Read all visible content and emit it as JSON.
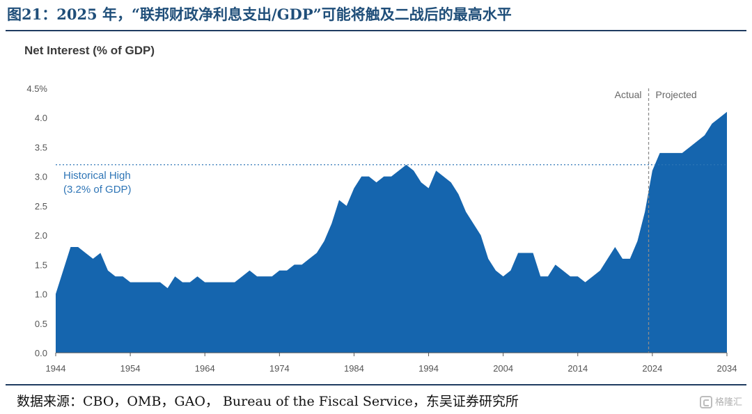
{
  "header": {
    "figure_title": "图21：2025 年，“联邦财政净利息支出/GDP”可能将触及二战后的最高水平"
  },
  "footer": {
    "source": "数据来源：CBO，OMB，GAO， Bureau of the Fiscal Service，东吴证券研究所",
    "watermark": "格隆汇"
  },
  "chart_data": {
    "type": "area",
    "title": "Net Interest (% of GDP)",
    "xlabel": "",
    "ylabel": "",
    "x_ticks": [
      "1944",
      "1954",
      "1964",
      "1974",
      "1984",
      "1994",
      "2004",
      "2014",
      "2024",
      "2034"
    ],
    "y_ticks": [
      "0.0",
      "0.5",
      "1.0",
      "1.5",
      "2.0",
      "2.5",
      "3.0",
      "3.5",
      "4.0",
      "4.5%"
    ],
    "xlim": [
      1944,
      2034
    ],
    "ylim": [
      0,
      4.5
    ],
    "grid": false,
    "color": "#1565ae",
    "reference_line": {
      "y": 3.2,
      "label_line1": "Historical High",
      "label_line2": "(3.2% of GDP)",
      "color": "#2e75b6"
    },
    "divider": {
      "x": 2023.5,
      "left_label": "Actual",
      "right_label": "Projected"
    },
    "series": [
      {
        "x": [
          1944,
          1945,
          1946,
          1947,
          1948,
          1949,
          1950,
          1951,
          1952,
          1953,
          1954,
          1955,
          1956,
          1957,
          1958,
          1959,
          1960,
          1961,
          1962,
          1963,
          1964,
          1965,
          1966,
          1967,
          1968,
          1969,
          1970,
          1971,
          1972,
          1973,
          1974,
          1975,
          1976,
          1977,
          1978,
          1979,
          1980,
          1981,
          1982,
          1983,
          1984,
          1985,
          1986,
          1987,
          1988,
          1989,
          1990,
          1991,
          1992,
          1993,
          1994,
          1995,
          1996,
          1997,
          1998,
          1999,
          2000,
          2001,
          2002,
          2003,
          2004,
          2005,
          2006,
          2007,
          2008,
          2009,
          2010,
          2011,
          2012,
          2013,
          2014,
          2015,
          2016,
          2017,
          2018,
          2019,
          2020,
          2021,
          2022,
          2023,
          2024,
          2025,
          2026,
          2027,
          2028,
          2029,
          2030,
          2031,
          2032,
          2033,
          2034
        ],
        "values": [
          1.0,
          1.4,
          1.8,
          1.8,
          1.7,
          1.6,
          1.7,
          1.4,
          1.3,
          1.3,
          1.2,
          1.2,
          1.2,
          1.2,
          1.2,
          1.1,
          1.3,
          1.2,
          1.2,
          1.3,
          1.2,
          1.2,
          1.2,
          1.2,
          1.2,
          1.3,
          1.4,
          1.3,
          1.3,
          1.3,
          1.4,
          1.4,
          1.5,
          1.5,
          1.6,
          1.7,
          1.9,
          2.2,
          2.6,
          2.5,
          2.8,
          3.0,
          3.0,
          2.9,
          3.0,
          3.0,
          3.1,
          3.2,
          3.1,
          2.9,
          2.8,
          3.1,
          3.0,
          2.9,
          2.7,
          2.4,
          2.2,
          2.0,
          1.6,
          1.4,
          1.3,
          1.4,
          1.7,
          1.7,
          1.7,
          1.3,
          1.3,
          1.5,
          1.4,
          1.3,
          1.3,
          1.2,
          1.3,
          1.4,
          1.6,
          1.8,
          1.6,
          1.6,
          1.9,
          2.4,
          3.1,
          3.4,
          3.4,
          3.4,
          3.4,
          3.5,
          3.6,
          3.7,
          3.9,
          4.0,
          4.1
        ]
      }
    ]
  }
}
